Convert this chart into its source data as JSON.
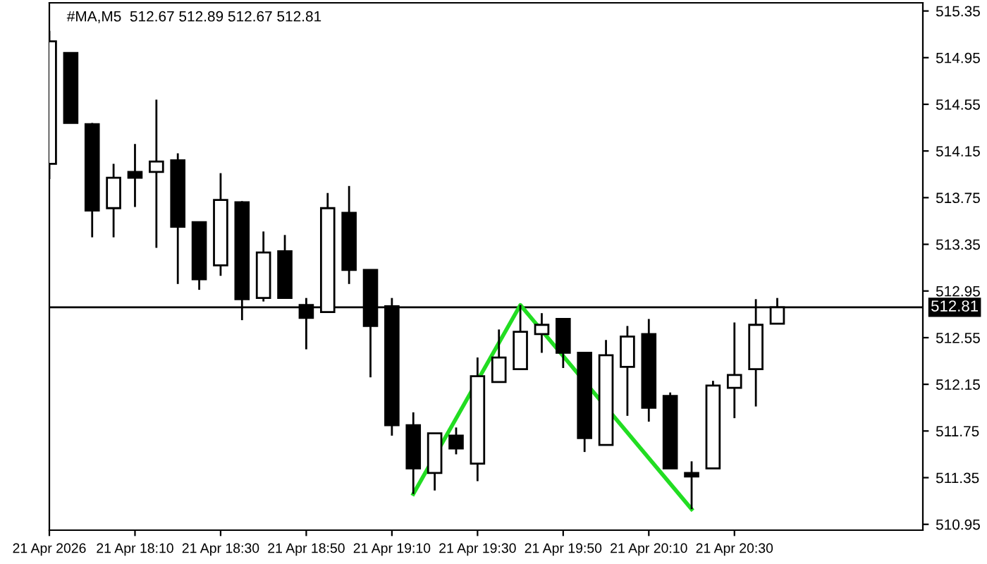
{
  "chart_data": {
    "type": "candlestick",
    "title": "#MA,M5  512.67 512.89 512.67 512.81",
    "x": [
      "2026-04-21T17:50",
      "2026-04-21T17:55",
      "2026-04-21T18:00",
      "2026-04-21T18:05",
      "2026-04-21T18:10",
      "2026-04-21T18:15",
      "2026-04-21T18:20",
      "2026-04-21T18:25",
      "2026-04-21T18:30",
      "2026-04-21T18:35",
      "2026-04-21T18:40",
      "2026-04-21T18:45",
      "2026-04-21T18:50",
      "2026-04-21T18:55",
      "2026-04-21T19:00",
      "2026-04-21T19:05",
      "2026-04-21T19:10",
      "2026-04-21T19:15",
      "2026-04-21T19:20",
      "2026-04-21T19:25",
      "2026-04-21T19:30",
      "2026-04-21T19:35",
      "2026-04-21T19:40",
      "2026-04-21T19:45",
      "2026-04-21T19:50",
      "2026-04-21T19:55",
      "2026-04-21T20:00",
      "2026-04-21T20:05",
      "2026-04-21T20:10",
      "2026-04-21T20:15",
      "2026-04-21T20:20",
      "2026-04-21T20:25",
      "2026-04-21T20:30",
      "2026-04-21T20:35",
      "2026-04-21T20:40"
    ],
    "ohlc": [
      [
        514.04,
        515.18,
        513.91,
        515.09
      ],
      [
        514.99,
        514.99,
        514.39,
        514.39
      ],
      [
        514.38,
        514.39,
        513.41,
        513.64
      ],
      [
        513.66,
        514.04,
        513.41,
        513.92
      ],
      [
        513.97,
        514.21,
        513.67,
        513.92
      ],
      [
        513.97,
        514.59,
        513.32,
        514.06
      ],
      [
        514.07,
        514.13,
        513.01,
        513.5
      ],
      [
        513.54,
        513.54,
        512.96,
        513.05
      ],
      [
        513.17,
        513.96,
        513.08,
        513.73
      ],
      [
        513.71,
        513.72,
        512.7,
        512.88
      ],
      [
        512.89,
        513.46,
        512.86,
        513.28
      ],
      [
        513.29,
        513.43,
        512.89,
        512.89
      ],
      [
        512.83,
        512.89,
        512.45,
        512.72
      ],
      [
        512.77,
        513.79,
        512.77,
        513.66
      ],
      [
        513.62,
        513.85,
        513.01,
        513.13
      ],
      [
        513.13,
        513.13,
        512.21,
        512.65
      ],
      [
        512.82,
        512.89,
        511.71,
        511.8
      ],
      [
        511.8,
        511.91,
        511.21,
        511.43
      ],
      [
        511.39,
        511.73,
        511.24,
        511.73
      ],
      [
        511.71,
        511.78,
        511.55,
        511.6
      ],
      [
        511.47,
        512.38,
        511.32,
        512.22
      ],
      [
        512.17,
        512.62,
        512.17,
        512.38
      ],
      [
        512.28,
        512.83,
        512.28,
        512.6
      ],
      [
        512.58,
        512.76,
        512.42,
        512.66
      ],
      [
        512.71,
        512.71,
        512.29,
        512.42
      ],
      [
        512.42,
        512.42,
        511.57,
        511.69
      ],
      [
        511.63,
        512.53,
        511.63,
        512.4
      ],
      [
        512.3,
        512.65,
        511.88,
        512.56
      ],
      [
        512.58,
        512.71,
        511.83,
        511.95
      ],
      [
        512.05,
        512.08,
        511.43,
        511.43
      ],
      [
        511.39,
        511.49,
        511.08,
        511.36
      ],
      [
        511.43,
        512.18,
        511.43,
        512.14
      ],
      [
        512.12,
        512.68,
        511.86,
        512.23
      ],
      [
        512.28,
        512.88,
        511.96,
        512.66
      ],
      [
        512.67,
        512.89,
        512.67,
        512.81
      ]
    ],
    "series": [
      {
        "type": "line",
        "color": "#22dd22",
        "x": [
          "2026-04-21T19:15",
          "2026-04-21T19:40",
          "2026-04-21T20:20"
        ],
        "values": [
          511.21,
          512.83,
          511.08
        ]
      }
    ],
    "xlim": [
      "2026-04-21T17:50",
      "2026-04-21T21:14"
    ],
    "xticks": [
      {
        "value": "2026-04-21T17:50",
        "label": "21 Apr 2026"
      },
      {
        "value": "2026-04-21T18:10",
        "label": "21 Apr 18:10"
      },
      {
        "value": "2026-04-21T18:30",
        "label": "21 Apr 18:30"
      },
      {
        "value": "2026-04-21T18:50",
        "label": "21 Apr 18:50"
      },
      {
        "value": "2026-04-21T19:10",
        "label": "21 Apr 19:10"
      },
      {
        "value": "2026-04-21T19:30",
        "label": "21 Apr 19:30"
      },
      {
        "value": "2026-04-21T19:50",
        "label": "21 Apr 19:50"
      },
      {
        "value": "2026-04-21T20:10",
        "label": "21 Apr 20:10"
      },
      {
        "value": "2026-04-21T20:30",
        "label": "21 Apr 20:30"
      }
    ],
    "ylim": [
      510.9,
      515.42
    ],
    "yticks": [
      {
        "value": 510.95,
        "label": "510.95"
      },
      {
        "value": 511.35,
        "label": "511.35"
      },
      {
        "value": 511.75,
        "label": "511.75"
      },
      {
        "value": 512.15,
        "label": "512.15"
      },
      {
        "value": 512.55,
        "label": "512.55"
      },
      {
        "value": 512.95,
        "label": "512.95"
      },
      {
        "value": 513.35,
        "label": "513.35"
      },
      {
        "value": 513.75,
        "label": "513.75"
      },
      {
        "value": 514.15,
        "label": "514.15"
      },
      {
        "value": 514.55,
        "label": "514.55"
      },
      {
        "value": 514.95,
        "label": "514.95"
      },
      {
        "value": 515.35,
        "label": "515.35"
      }
    ],
    "ref_lines": [
      {
        "axis": "y",
        "value": 512.81,
        "label": "512.81",
        "color": "#000000"
      }
    ],
    "grid": false
  }
}
